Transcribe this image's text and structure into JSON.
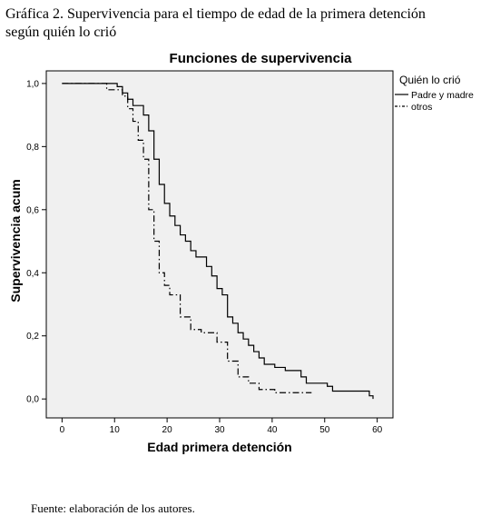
{
  "figure": {
    "caption": "Gráfica 2. Supervivencia para el tiempo de edad de la primera detención según quién lo crió",
    "source": "Fuente: elaboración de los autores."
  },
  "chart_data": {
    "type": "line",
    "step": true,
    "title": "Funciones de supervivencia",
    "xlabel": "Edad primera detención",
    "ylabel": "Supervivencia acum",
    "xlim": [
      -3,
      63
    ],
    "ylim": [
      -0.06,
      1.04
    ],
    "xticks": [
      "0",
      "10",
      "20",
      "30",
      "40",
      "50",
      "60"
    ],
    "yticks": [
      "0,0",
      "0,2",
      "0,4",
      "0,6",
      "0,8",
      "1,0"
    ],
    "grid": false,
    "legend": {
      "title": "Quién lo crió",
      "position": "right-outside-top"
    },
    "series": [
      {
        "name": "Padre y madre",
        "style": "solid",
        "color": "#000000",
        "x": [
          0,
          10.5,
          11.5,
          12.5,
          13.5,
          15.5,
          16.5,
          17.5,
          18.5,
          19.5,
          20.5,
          21.5,
          22.5,
          23.5,
          24.5,
          25.5,
          27.5,
          28.5,
          29.5,
          30.5,
          31.5,
          32.5,
          33.5,
          34.5,
          35.5,
          36.5,
          37.5,
          38.5,
          40.5,
          42.5,
          45.5,
          46.5,
          50.5,
          51.5,
          58.5,
          59.2
        ],
        "y": [
          1.0,
          0.99,
          0.97,
          0.95,
          0.93,
          0.9,
          0.85,
          0.76,
          0.68,
          0.62,
          0.58,
          0.55,
          0.52,
          0.5,
          0.47,
          0.45,
          0.42,
          0.39,
          0.35,
          0.33,
          0.26,
          0.24,
          0.21,
          0.19,
          0.17,
          0.15,
          0.13,
          0.11,
          0.1,
          0.09,
          0.07,
          0.05,
          0.04,
          0.025,
          0.01,
          0.0
        ]
      },
      {
        "name": "otros",
        "style": "dash-dot",
        "color": "#000000",
        "x": [
          0,
          8.5,
          11.5,
          12.5,
          13.5,
          14.5,
          15.5,
          16.5,
          17.5,
          18.5,
          19.5,
          20.5,
          22.5,
          24.5,
          26.5,
          29.5,
          31.5,
          33.5,
          35.5,
          37.5,
          40.5,
          47.5
        ],
        "y": [
          1.0,
          0.98,
          0.96,
          0.92,
          0.88,
          0.82,
          0.76,
          0.6,
          0.5,
          0.4,
          0.36,
          0.33,
          0.26,
          0.22,
          0.21,
          0.18,
          0.12,
          0.07,
          0.05,
          0.03,
          0.02,
          0.02
        ]
      }
    ]
  }
}
